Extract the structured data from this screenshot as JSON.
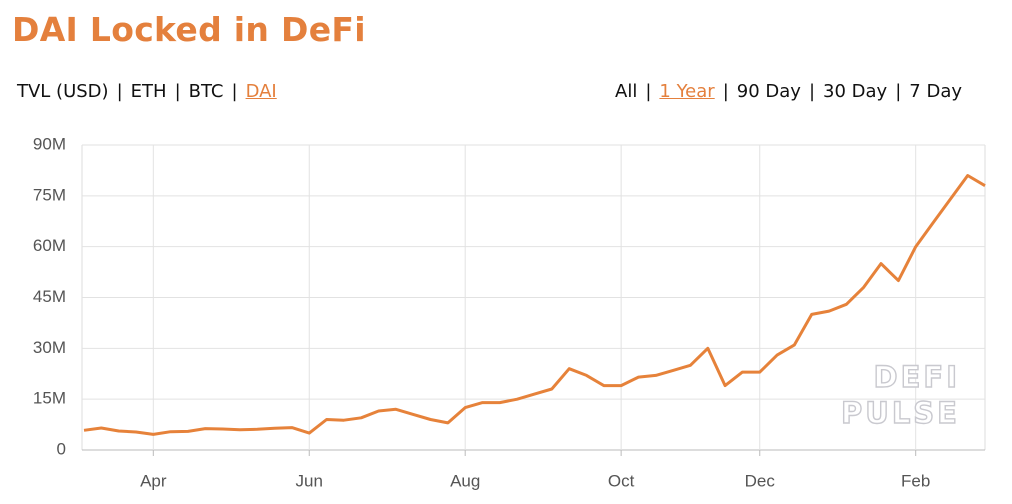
{
  "chart_data": {
    "type": "line",
    "title": "DAI Locked in DeFi",
    "categories": [
      null,
      null,
      null,
      null,
      "Apr",
      null,
      null,
      null,
      null,
      null,
      null,
      null,
      null,
      "Jun",
      null,
      null,
      null,
      null,
      null,
      null,
      null,
      null,
      "Aug",
      null,
      null,
      null,
      null,
      null,
      null,
      null,
      null,
      "Oct",
      null,
      null,
      null,
      null,
      null,
      null,
      null,
      "Dec",
      null,
      null,
      null,
      null,
      null,
      null,
      null,
      null,
      "Feb",
      null,
      null,
      null,
      null
    ],
    "series": [
      {
        "name": "DAI",
        "color": "#e6823a",
        "values": [
          5800000,
          6500000,
          5600000,
          5300000,
          4600000,
          5400000,
          5500000,
          6300000,
          6200000,
          6000000,
          6100000,
          6400000,
          6600000,
          5000000,
          9000000,
          8800000,
          9500000,
          11500000,
          12000000,
          10500000,
          9000000,
          8000000,
          12500000,
          14000000,
          14000000,
          15000000,
          16500000,
          18000000,
          24000000,
          22000000,
          19000000,
          19000000,
          21500000,
          22000000,
          23500000,
          25000000,
          30000000,
          19000000,
          23000000,
          23000000,
          28000000,
          31000000,
          40000000,
          41000000,
          43000000,
          48000000,
          55000000,
          50000000,
          60000000,
          67000000,
          74000000,
          81000000,
          78000000
        ]
      }
    ],
    "ylim": [
      0,
      90000000
    ],
    "yticks": [
      0,
      {
        "value": 15000000,
        "label": "15M"
      },
      {
        "value": 30000000,
        "label": "30M"
      },
      {
        "value": 45000000,
        "label": "45M"
      },
      {
        "value": 60000000,
        "label": "60M"
      },
      {
        "value": 75000000,
        "label": "75M"
      },
      {
        "value": 90000000,
        "label": "90M"
      }
    ],
    "grid": true
  },
  "separator": "|",
  "tabs_left": [
    {
      "label": "TVL (USD)",
      "active": false
    },
    {
      "label": "ETH",
      "active": false
    },
    {
      "label": "BTC",
      "active": false
    },
    {
      "label": "DAI",
      "active": true
    }
  ],
  "tabs_right": [
    {
      "label": "All",
      "active": false
    },
    {
      "label": "1 Year",
      "active": true
    },
    {
      "label": "90 Day",
      "active": false
    },
    {
      "label": "30 Day",
      "active": false
    },
    {
      "label": "7 Day",
      "active": false
    }
  ],
  "watermark": [
    "DEFI",
    "PULSE"
  ]
}
